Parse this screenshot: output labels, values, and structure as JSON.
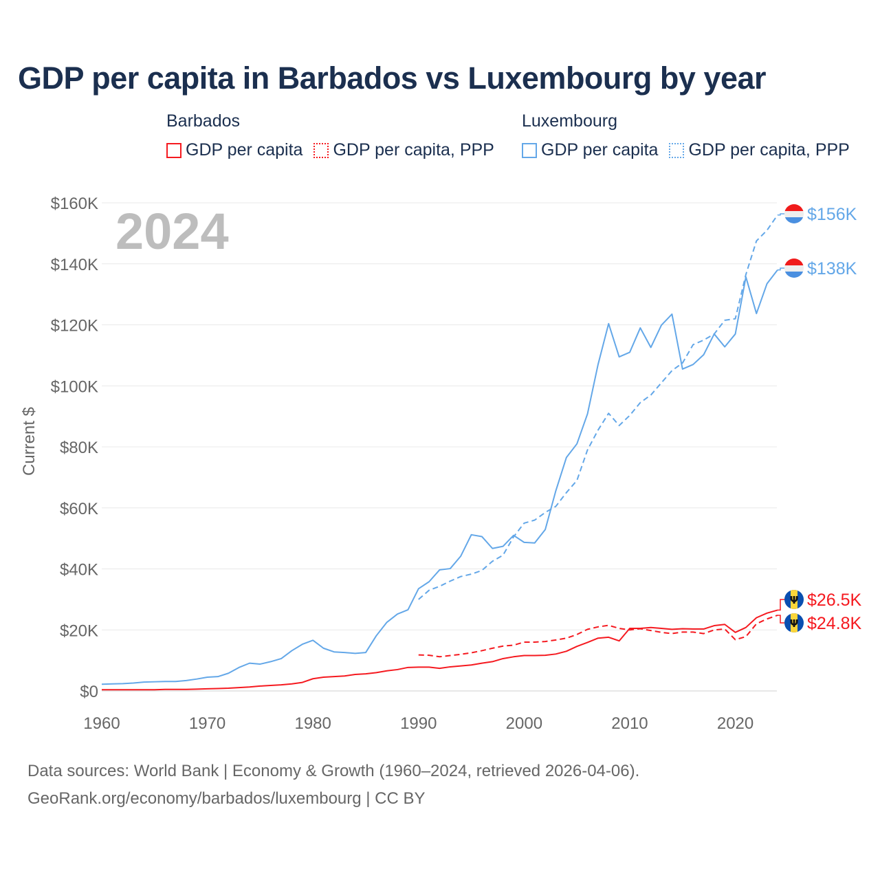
{
  "title": "GDP per capita in Barbados vs Luxembourg by year",
  "legend": {
    "groups": [
      {
        "name": "Barbados",
        "items": [
          "GDP per capita",
          "GDP per capita, PPP"
        ]
      },
      {
        "name": "Luxembourg",
        "items": [
          "GDP per capita",
          "GDP per capita, PPP"
        ]
      }
    ]
  },
  "colors": {
    "barbados": "#f5191f",
    "luxembourg": "#63a7e8",
    "title": "#1b2f4f"
  },
  "footer": {
    "line1": "Data sources: World Bank | Economy & Growth (1960–2024, retrieved 2026-04-06).",
    "line2": "GeoRank.org/economy/barbados/luxembourg | CC BY"
  },
  "chart_data": {
    "type": "line",
    "title": "GDP per capita in Barbados vs Luxembourg by year",
    "year_label": "2024",
    "ylabel": "Current $",
    "xlabel": "",
    "xlim": [
      1960,
      2024
    ],
    "ylim": [
      0,
      160000
    ],
    "x_ticks": [
      "1960",
      "1970",
      "1980",
      "1990",
      "2000",
      "2010",
      "2020"
    ],
    "y_ticks": [
      "$0",
      "$20K",
      "$40K",
      "$60K",
      "$80K",
      "$100K",
      "$120K",
      "$140K",
      "$160K"
    ],
    "grid": true,
    "legend_position": "top",
    "series": [
      {
        "name": "Luxembourg GDP per capita, PPP",
        "country": "luxembourg",
        "dashed": true,
        "start": 1990,
        "end_label": "$156K",
        "values_k": [
          30.0,
          33.0,
          34.3,
          36.0,
          37.5,
          38.3,
          39.5,
          42.5,
          44.5,
          50.5,
          55.0,
          56.0,
          58.5,
          60.5,
          65.0,
          69.0,
          79.0,
          85.5,
          91.0,
          87.0,
          90.3,
          94.5,
          97.0,
          101.0,
          105.0,
          107.5,
          113.5,
          115.0,
          117.0,
          121.5,
          122.0,
          136.5,
          147.5,
          151.0,
          156.0
        ]
      },
      {
        "name": "Luxembourg GDP per capita",
        "country": "luxembourg",
        "dashed": false,
        "start": 1960,
        "end_label": "$138K",
        "values_k": [
          2.2,
          2.3,
          2.4,
          2.6,
          2.9,
          3.0,
          3.1,
          3.1,
          3.4,
          3.9,
          4.5,
          4.7,
          5.8,
          7.7,
          9.1,
          8.8,
          9.6,
          10.6,
          13.2,
          15.3,
          16.6,
          14.0,
          12.8,
          12.6,
          12.3,
          12.6,
          18.1,
          22.5,
          25.2,
          26.6,
          33.5,
          35.8,
          39.7,
          40.1,
          44.2,
          51.2,
          50.6,
          46.7,
          47.4,
          51.0,
          48.7,
          48.5,
          52.9,
          65.6,
          76.5,
          81.0,
          90.8,
          107.0,
          120.4,
          109.5,
          111.0,
          119.0,
          112.6,
          119.9,
          123.5,
          105.5,
          107.0,
          110.2,
          117.0,
          112.8,
          117.0,
          135.7,
          123.7,
          133.5,
          138.0
        ]
      },
      {
        "name": "Barbados GDP per capita",
        "country": "barbados",
        "dashed": false,
        "start": 1960,
        "end_label": "$26.5K",
        "values_k": [
          0.4,
          0.4,
          0.4,
          0.4,
          0.4,
          0.4,
          0.5,
          0.5,
          0.5,
          0.6,
          0.7,
          0.8,
          0.9,
          1.1,
          1.3,
          1.6,
          1.8,
          2.0,
          2.3,
          2.8,
          4.0,
          4.5,
          4.7,
          4.9,
          5.4,
          5.6,
          6.0,
          6.6,
          7.0,
          7.7,
          7.8,
          7.8,
          7.4,
          7.9,
          8.2,
          8.5,
          9.1,
          9.6,
          10.6,
          11.2,
          11.6,
          11.6,
          11.7,
          12.1,
          13.0,
          14.6,
          15.9,
          17.3,
          17.6,
          16.4,
          20.5,
          20.5,
          20.8,
          20.5,
          20.2,
          20.4,
          20.3,
          20.3,
          21.4,
          21.8,
          19.2,
          20.8,
          24.0,
          25.5,
          26.5
        ]
      },
      {
        "name": "Barbados GDP per capita, PPP",
        "country": "barbados",
        "dashed": true,
        "start": 1990,
        "end_label": "$24.8K",
        "values_k": [
          11.8,
          11.7,
          11.2,
          11.6,
          12.0,
          12.5,
          13.2,
          14.0,
          14.7,
          15.0,
          16.0,
          16.0,
          16.2,
          16.7,
          17.3,
          18.5,
          20.2,
          21.0,
          21.5,
          20.5,
          20.0,
          20.4,
          19.8,
          19.2,
          18.8,
          19.3,
          19.3,
          18.8,
          20.0,
          20.3,
          16.8,
          17.8,
          22.0,
          23.6,
          24.8
        ]
      }
    ]
  }
}
